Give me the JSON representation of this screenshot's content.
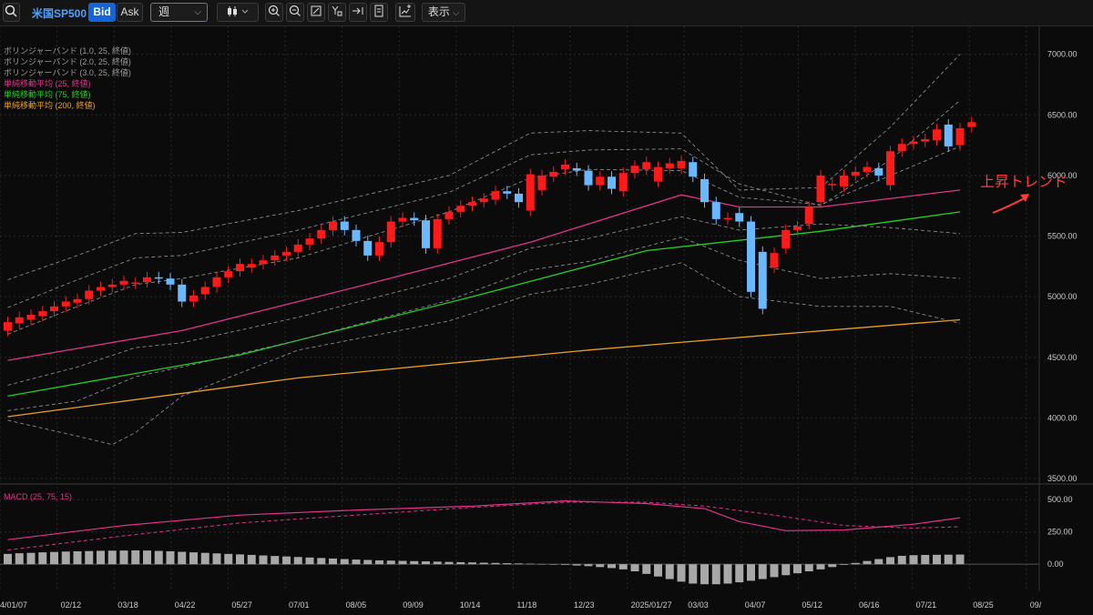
{
  "toolbar": {
    "symbol": "米国SP500",
    "bid_label": "Bid",
    "ask_label": "Ask",
    "period": "週",
    "display_label": "表示"
  },
  "legend": [
    {
      "label": "ボリンジャーバンド (1.0, 25, 終値)",
      "color": "#9a9a9a"
    },
    {
      "label": "ボリンジャーバンド (2.0, 25, 終値)",
      "color": "#9a9a9a"
    },
    {
      "label": "ボリンジャーバンド (3.0, 25, 終値)",
      "color": "#9a9a9a"
    },
    {
      "label": "単純移動平均 (25, 終値)",
      "color": "#e0338a"
    },
    {
      "label": "単純移動平均 (75, 終値)",
      "color": "#22d022"
    },
    {
      "label": "単純移動平均 (200, 終値)",
      "color": "#e8a020"
    }
  ],
  "macd_label": "MACD (25, 75, 15)",
  "annotation": "上昇トレンド",
  "colors": {
    "up": "#ff1a1a",
    "down": "#6ab8ff",
    "sma25": "#e0338a",
    "sma75": "#22d022",
    "sma200": "#e8a020",
    "macd": "#e0338a",
    "hist": "#a8a8a8"
  },
  "chart_data": {
    "type": "candlestick",
    "x_tick_labels": [
      "4/01/07",
      "02/12",
      "03/18",
      "04/22",
      "05/27",
      "07/01",
      "08/05",
      "09/09",
      "10/14",
      "11/18",
      "12/23",
      "2025/01/27",
      "03/03",
      "04/07",
      "05/12",
      "06/16",
      "07/21",
      "08/25",
      "09/"
    ],
    "price_ticks": [
      "7000.00",
      "6500.00",
      "6000.00",
      "5500.00",
      "5000.00",
      "4500.00",
      "4000.00",
      "3500.00"
    ],
    "ylim": [
      3470,
      7230
    ],
    "week_range": [
      0,
      82
    ],
    "candles": [
      [
        4720,
        4790
      ],
      [
        4780,
        4830
      ],
      [
        4810,
        4850
      ],
      [
        4840,
        4880
      ],
      [
        4880,
        4920
      ],
      [
        4920,
        4960
      ],
      [
        4950,
        4980
      ],
      [
        4980,
        5050
      ],
      [
        5050,
        5080
      ],
      [
        5080,
        5100
      ],
      [
        5100,
        5130
      ],
      [
        5110,
        5117
      ],
      [
        5120,
        5160
      ],
      [
        5160,
        5150
      ],
      [
        5150,
        5100
      ],
      [
        5100,
        4960
      ],
      [
        4960,
        5010
      ],
      [
        5020,
        5080
      ],
      [
        5080,
        5160
      ],
      [
        5160,
        5210
      ],
      [
        5210,
        5270
      ],
      [
        5240,
        5270
      ],
      [
        5270,
        5300
      ],
      [
        5300,
        5340
      ],
      [
        5340,
        5370
      ],
      [
        5370,
        5430
      ],
      [
        5430,
        5480
      ],
      [
        5480,
        5550
      ],
      [
        5550,
        5620
      ],
      [
        5620,
        5550
      ],
      [
        5550,
        5460
      ],
      [
        5460,
        5340
      ],
      [
        5340,
        5450
      ],
      [
        5450,
        5620
      ],
      [
        5620,
        5650
      ],
      [
        5650,
        5630
      ],
      [
        5630,
        5400
      ],
      [
        5400,
        5640
      ],
      [
        5640,
        5700
      ],
      [
        5700,
        5750
      ],
      [
        5750,
        5780
      ],
      [
        5780,
        5810
      ],
      [
        5800,
        5870
      ],
      [
        5870,
        5850
      ],
      [
        5850,
        5780
      ],
      [
        5710,
        6010
      ],
      [
        5880,
        6000
      ],
      [
        5990,
        6030
      ],
      [
        6050,
        6090
      ],
      [
        6060,
        6040
      ],
      [
        6040,
        5920
      ],
      [
        5920,
        5990
      ],
      [
        5990,
        5890
      ],
      [
        5870,
        6020
      ],
      [
        6020,
        6080
      ],
      [
        6050,
        6110
      ],
      [
        5950,
        6070
      ],
      [
        6060,
        6100
      ],
      [
        6060,
        6120
      ],
      [
        6110,
        5990
      ],
      [
        5970,
        5780
      ],
      [
        5780,
        5640
      ],
      [
        5640,
        5650
      ],
      [
        5690,
        5620
      ],
      [
        5620,
        5040
      ],
      [
        5370,
        4900
      ],
      [
        5240,
        5360
      ],
      [
        5400,
        5550
      ],
      [
        5550,
        5580
      ],
      [
        5600,
        5740
      ],
      [
        5780,
        6000
      ],
      [
        5920,
        5930
      ],
      [
        5910,
        6000
      ],
      [
        6000,
        6030
      ],
      [
        6030,
        6070
      ],
      [
        6060,
        6000
      ],
      [
        5920,
        6200
      ],
      [
        6200,
        6260
      ],
      [
        6260,
        6280
      ],
      [
        6280,
        6300
      ],
      [
        6290,
        6380
      ],
      [
        6420,
        6240
      ],
      [
        6250,
        6390
      ],
      [
        6400,
        6440
      ]
    ],
    "series": [
      {
        "name": "単純移動平均 (25, 終値)",
        "values": [
          [
            0,
            4475
          ],
          [
            15,
            4720
          ],
          [
            30,
            5080
          ],
          [
            45,
            5450
          ],
          [
            58,
            5840
          ],
          [
            63,
            5740
          ],
          [
            70,
            5740
          ],
          [
            82,
            5880
          ]
        ]
      },
      {
        "name": "単純移動平均 (75, 終値)",
        "values": [
          [
            0,
            4180
          ],
          [
            20,
            4520
          ],
          [
            40,
            5000
          ],
          [
            55,
            5380
          ],
          [
            70,
            5540
          ],
          [
            82,
            5700
          ]
        ]
      },
      {
        "name": "単純移動平均 (200, 終値)",
        "values": [
          [
            0,
            4010
          ],
          [
            25,
            4330
          ],
          [
            50,
            4560
          ],
          [
            65,
            4680
          ],
          [
            82,
            4810
          ]
        ]
      },
      {
        "name": "bb_upper_3",
        "values": [
          [
            0,
            5140
          ],
          [
            6,
            5340
          ],
          [
            11,
            5520
          ],
          [
            15,
            5530
          ],
          [
            25,
            5710
          ],
          [
            38,
            6000
          ],
          [
            45,
            6350
          ],
          [
            50,
            6370
          ],
          [
            58,
            6350
          ],
          [
            63,
            5880
          ],
          [
            70,
            5900
          ],
          [
            76,
            6400
          ],
          [
            82,
            7000
          ]
        ]
      },
      {
        "name": "bb_upper_2",
        "values": [
          [
            0,
            4910
          ],
          [
            6,
            5140
          ],
          [
            11,
            5320
          ],
          [
            15,
            5340
          ],
          [
            25,
            5550
          ],
          [
            38,
            5860
          ],
          [
            45,
            6170
          ],
          [
            50,
            6210
          ],
          [
            58,
            6220
          ],
          [
            63,
            5930
          ],
          [
            70,
            5750
          ],
          [
            76,
            6130
          ],
          [
            82,
            6620
          ]
        ]
      },
      {
        "name": "bb_upper_1",
        "values": [
          [
            0,
            4690
          ],
          [
            6,
            4920
          ],
          [
            11,
            5100
          ],
          [
            15,
            5150
          ],
          [
            25,
            5320
          ],
          [
            38,
            5700
          ],
          [
            45,
            5980
          ],
          [
            50,
            6050
          ],
          [
            58,
            6040
          ],
          [
            63,
            5820
          ],
          [
            70,
            5760
          ],
          [
            76,
            6000
          ],
          [
            82,
            6240
          ]
        ]
      },
      {
        "name": "bb_lower_1",
        "values": [
          [
            0,
            4270
          ],
          [
            6,
            4420
          ],
          [
            11,
            4580
          ],
          [
            15,
            4620
          ],
          [
            25,
            4830
          ],
          [
            38,
            5150
          ],
          [
            45,
            5400
          ],
          [
            50,
            5480
          ],
          [
            58,
            5660
          ],
          [
            63,
            5550
          ],
          [
            70,
            5600
          ],
          [
            76,
            5570
          ],
          [
            82,
            5520
          ]
        ]
      },
      {
        "name": "bb_lower_2",
        "values": [
          [
            0,
            4060
          ],
          [
            6,
            4140
          ],
          [
            11,
            4340
          ],
          [
            15,
            4420
          ],
          [
            25,
            4640
          ],
          [
            38,
            4970
          ],
          [
            45,
            5220
          ],
          [
            50,
            5290
          ],
          [
            58,
            5490
          ],
          [
            63,
            5300
          ],
          [
            70,
            5150
          ],
          [
            76,
            5190
          ],
          [
            82,
            5150
          ]
        ]
      },
      {
        "name": "bb_lower_3",
        "values": [
          [
            0,
            3980
          ],
          [
            6,
            3850
          ],
          [
            9,
            3780
          ],
          [
            11,
            3880
          ],
          [
            15,
            4180
          ],
          [
            25,
            4560
          ],
          [
            38,
            4800
          ],
          [
            45,
            5020
          ],
          [
            50,
            5100
          ],
          [
            58,
            5280
          ],
          [
            63,
            5000
          ],
          [
            70,
            4920
          ],
          [
            76,
            4920
          ],
          [
            82,
            4780
          ]
        ]
      }
    ],
    "macd": {
      "ylim": [
        -210,
        600
      ],
      "ticks": [
        "500.00",
        "250.00",
        "0.00"
      ],
      "macd_line": [
        [
          0,
          190
        ],
        [
          10,
          300
        ],
        [
          20,
          380
        ],
        [
          30,
          420
        ],
        [
          40,
          450
        ],
        [
          48,
          490
        ],
        [
          55,
          470
        ],
        [
          60,
          430
        ],
        [
          63,
          330
        ],
        [
          67,
          260
        ],
        [
          72,
          265
        ],
        [
          78,
          310
        ],
        [
          82,
          360
        ]
      ],
      "signal_line": [
        [
          0,
          110
        ],
        [
          10,
          220
        ],
        [
          20,
          320
        ],
        [
          30,
          380
        ],
        [
          40,
          440
        ],
        [
          48,
          480
        ],
        [
          55,
          480
        ],
        [
          60,
          450
        ],
        [
          66,
          380
        ],
        [
          72,
          300
        ],
        [
          78,
          280
        ],
        [
          82,
          290
        ]
      ],
      "histogram": [
        80,
        85,
        88,
        92,
        95,
        98,
        100,
        102,
        104,
        105,
        106,
        107,
        106,
        103,
        100,
        96,
        92,
        88,
        84,
        80,
        76,
        72,
        68,
        64,
        60,
        56,
        52,
        48,
        44,
        40,
        36,
        33,
        30,
        28,
        26,
        24,
        22,
        20,
        18,
        16,
        14,
        12,
        10,
        8,
        6,
        4,
        2,
        0,
        -5,
        -10,
        -15,
        -22,
        -30,
        -40,
        -55,
        -75,
        -95,
        -115,
        -135,
        -150,
        -155,
        -155,
        -150,
        -140,
        -128,
        -115,
        -100,
        -85,
        -70,
        -55,
        -40,
        -22,
        -5,
        10,
        25,
        40,
        55,
        65,
        70,
        72,
        73,
        74,
        75
      ]
    }
  }
}
